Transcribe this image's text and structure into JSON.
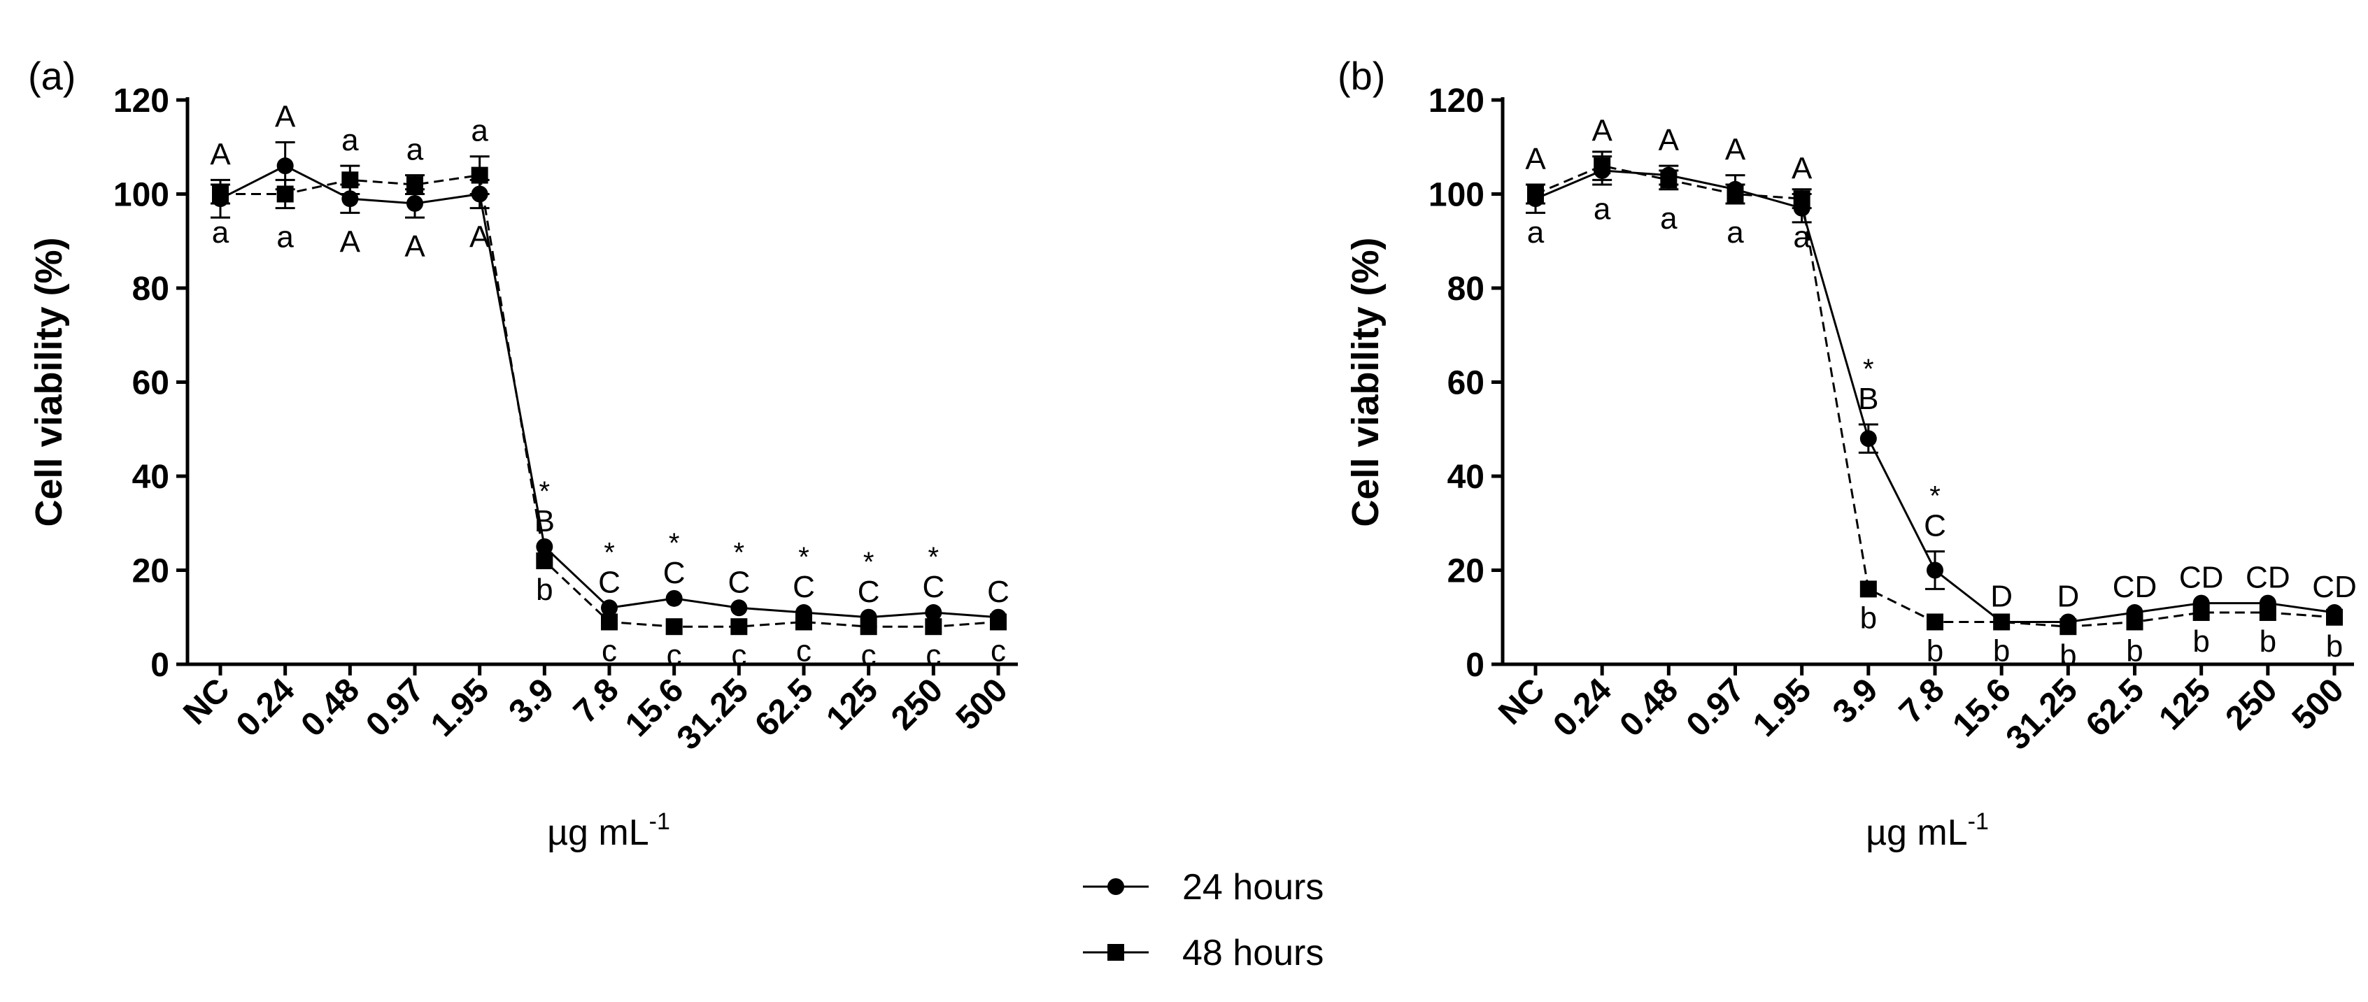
{
  "legend": {
    "placement": "bottom-center",
    "items": [
      {
        "label": "24 hours",
        "marker": "circle"
      },
      {
        "label": "48 hours",
        "marker": "square"
      }
    ]
  },
  "chart_data": [
    {
      "type": "line",
      "panel_label": "(a)",
      "xlabel": "µg mL",
      "xlabel_sup": "-1",
      "ylabel": "Cell viability (%)",
      "ylim": [
        0,
        120
      ],
      "yticks": [
        0,
        20,
        40,
        60,
        80,
        100,
        120
      ],
      "grid": false,
      "categories": [
        "NC",
        "0.24",
        "0.48",
        "0.97",
        "1.95",
        "3.9",
        "7.8",
        "15.6",
        "31.25",
        "62.5",
        "125",
        "250",
        "500"
      ],
      "series": [
        {
          "name": "24 hours",
          "marker": "circle",
          "values": [
            99,
            106,
            99,
            98,
            100,
            25,
            12,
            14,
            12,
            11,
            10,
            11,
            10
          ],
          "error": [
            4,
            5,
            3,
            3,
            3,
            0,
            0,
            0,
            0,
            0,
            0,
            0,
            0
          ],
          "letters": [
            "A",
            "A",
            "A",
            "A",
            "A",
            "B",
            "C",
            "C",
            "C",
            "C",
            "C",
            "C",
            "C"
          ],
          "letter_side": [
            "above",
            "above",
            "below",
            "below",
            "below",
            "above",
            "above",
            "above",
            "above",
            "above",
            "above",
            "above",
            "above"
          ],
          "stars": [
            "",
            "",
            "",
            "",
            "",
            "*",
            "*",
            "*",
            "*",
            "*",
            "*",
            "*",
            ""
          ]
        },
        {
          "name": "48 hours",
          "marker": "square",
          "values": [
            100,
            100,
            103,
            102,
            104,
            22,
            9,
            8,
            8,
            9,
            8,
            8,
            9
          ],
          "error": [
            2,
            3,
            3,
            2,
            4,
            0,
            0,
            0,
            0,
            0,
            0,
            0,
            0
          ],
          "letters": [
            "a",
            "a",
            "a",
            "a",
            "a",
            "b",
            "c",
            "c",
            "c",
            "c",
            "c",
            "c",
            "c"
          ],
          "letter_side": [
            "below",
            "below",
            "above",
            "above",
            "above",
            "below",
            "below",
            "below",
            "below",
            "below",
            "below",
            "below",
            "below"
          ]
        }
      ]
    },
    {
      "type": "line",
      "panel_label": "(b)",
      "xlabel": "µg mL",
      "xlabel_sup": "-1",
      "ylabel": "Cell viability (%)",
      "ylim": [
        0,
        120
      ],
      "yticks": [
        0,
        20,
        40,
        60,
        80,
        100,
        120
      ],
      "grid": false,
      "categories": [
        "NC",
        "0.24",
        "0.48",
        "0.97",
        "1.95",
        "3.9",
        "7.8",
        "15.6",
        "31.25",
        "62.5",
        "125",
        "250",
        "500"
      ],
      "series": [
        {
          "name": "24 hours",
          "marker": "circle",
          "values": [
            99,
            105,
            104,
            101,
            97,
            48,
            20,
            9,
            9,
            11,
            13,
            13,
            11
          ],
          "error": [
            3,
            3,
            2,
            3,
            3,
            3,
            4,
            0,
            0,
            0,
            0,
            0,
            0
          ],
          "letters": [
            "A",
            "A",
            "A",
            "A",
            "A",
            "B",
            "C",
            "D",
            "D",
            "CD",
            "CD",
            "CD",
            "CD"
          ],
          "letter_side": [
            "above",
            "above",
            "above",
            "above",
            "above",
            "above",
            "above",
            "above",
            "above",
            "above",
            "above",
            "above",
            "above"
          ],
          "stars": [
            "",
            "",
            "",
            "",
            "",
            "*",
            "*",
            "",
            "",
            "",
            "",
            "",
            ""
          ]
        },
        {
          "name": "48 hours",
          "marker": "square",
          "values": [
            100,
            106,
            103,
            100,
            99,
            16,
            9,
            9,
            8,
            9,
            11,
            11,
            10
          ],
          "error": [
            2,
            3,
            2,
            2,
            2,
            0,
            0,
            0,
            0,
            0,
            0,
            0,
            0
          ],
          "letters": [
            "a",
            "a",
            "a",
            "a",
            "a",
            "b",
            "b",
            "b",
            "b",
            "b",
            "b",
            "b",
            "b"
          ],
          "letter_side": [
            "below",
            "below",
            "below",
            "below",
            "below",
            "below",
            "below",
            "below",
            "below",
            "below",
            "below",
            "below",
            "below"
          ]
        }
      ]
    }
  ]
}
